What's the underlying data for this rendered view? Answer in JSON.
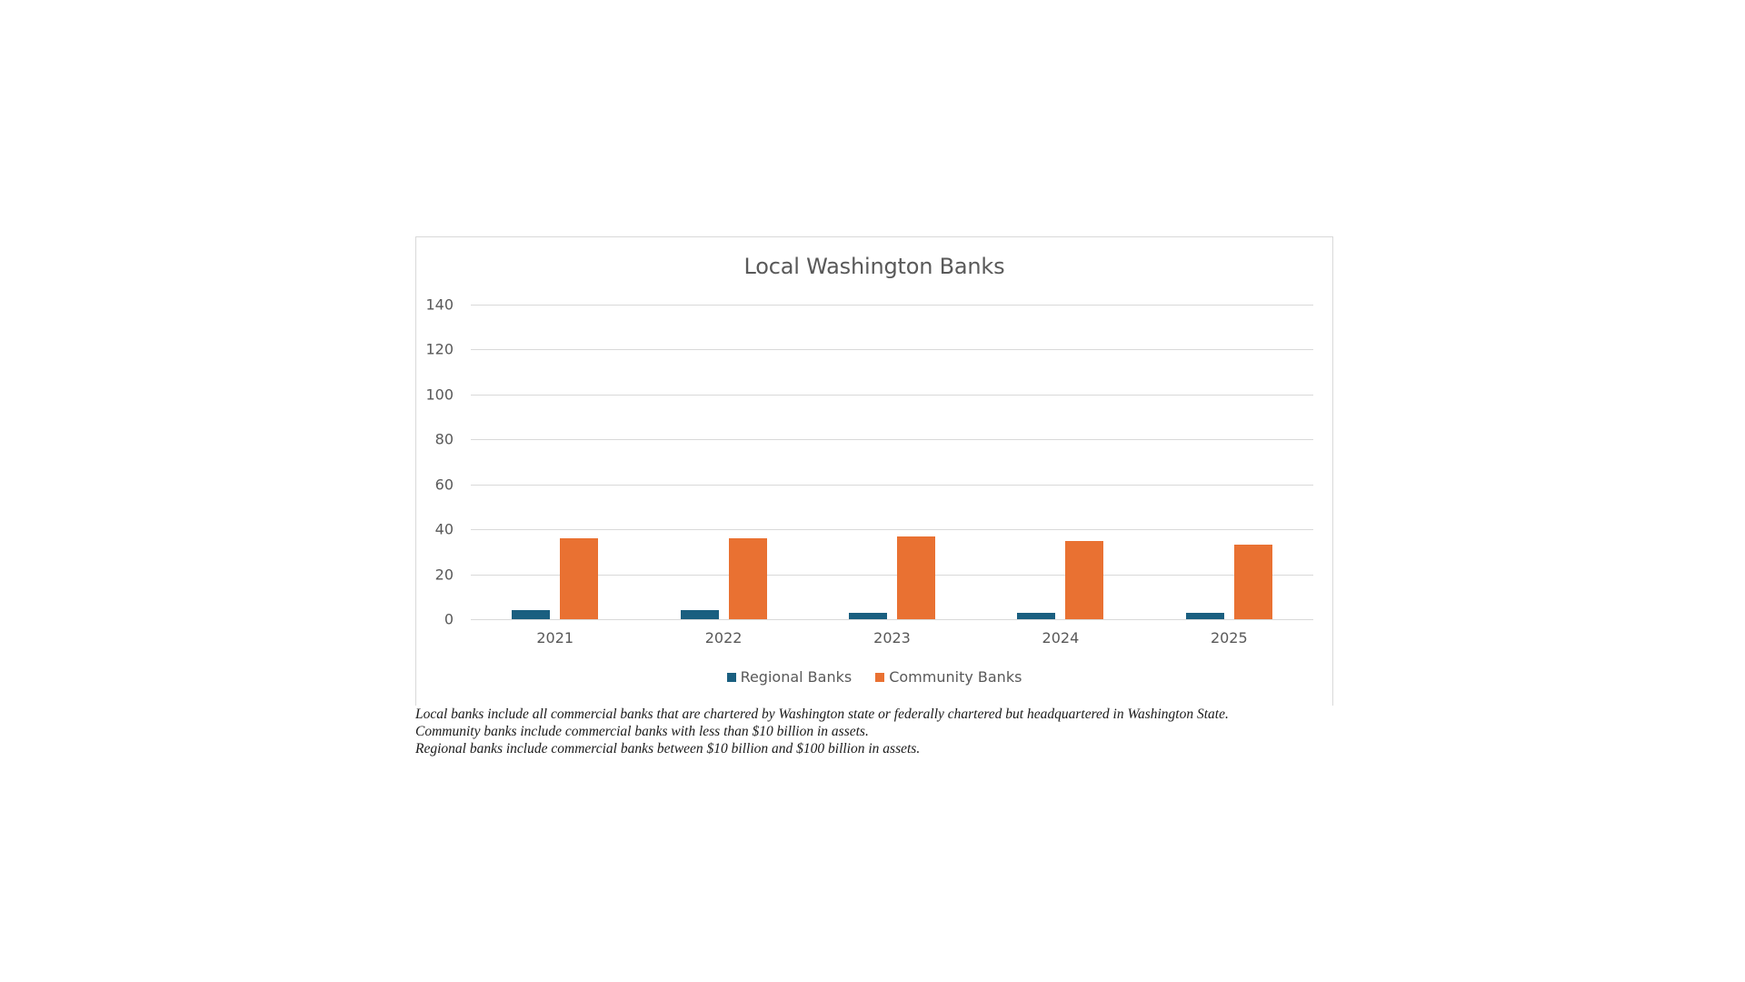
{
  "chart_data": {
    "type": "bar",
    "title": "Local Washington Banks",
    "xlabel": "",
    "ylabel": "",
    "categories": [
      "2021",
      "2022",
      "2023",
      "2024",
      "2025"
    ],
    "series": [
      {
        "name": "Regional Banks",
        "color": "#1a5f80",
        "values": [
          4,
          4,
          3,
          3,
          3
        ]
      },
      {
        "name": "Community Banks",
        "color": "#e97132",
        "values": [
          36,
          36,
          37,
          35,
          33
        ]
      }
    ],
    "ylim": [
      0,
      140
    ],
    "yticks": [
      "0",
      "20",
      "40",
      "60",
      "80",
      "100",
      "120",
      "140"
    ],
    "grid": true,
    "legend_position": "bottom"
  },
  "footnotes": [
    "Local banks include all commercial banks that are chartered by Washington state or federally chartered but headquartered in Washington State.",
    "Community banks include commercial banks with less than $10 billion in assets.",
    "Regional banks include commercial banks between $10 billion and $100 billion in assets."
  ]
}
